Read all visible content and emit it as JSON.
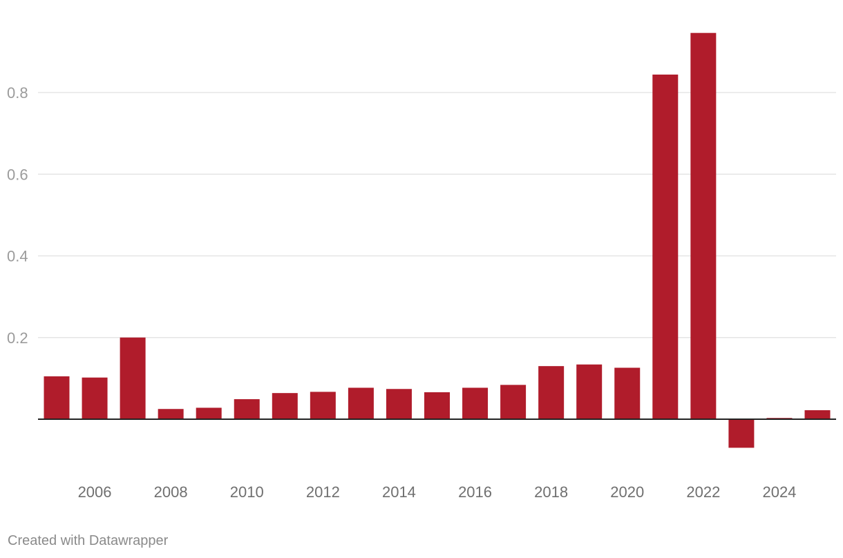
{
  "chart_data": {
    "type": "bar",
    "title": "",
    "xlabel": "",
    "ylabel": "",
    "categories": [
      "2005",
      "2006",
      "2007",
      "2008",
      "2009",
      "2010",
      "2011",
      "2012",
      "2013",
      "2014",
      "2015",
      "2016",
      "2017",
      "2018",
      "2019",
      "2020",
      "2021",
      "2022",
      "2023",
      "2024",
      "2025"
    ],
    "values": [
      0.105,
      0.102,
      0.2,
      0.025,
      0.028,
      0.049,
      0.064,
      0.067,
      0.077,
      0.074,
      0.066,
      0.077,
      0.084,
      0.13,
      0.134,
      0.126,
      0.844,
      0.946,
      -0.07,
      0.003,
      0.022
    ],
    "ylim": [
      -0.1,
      0.95
    ],
    "y_ticks": [
      0.2,
      0.4,
      0.6,
      0.8
    ],
    "y_tick_labels": [
      "0.2",
      "0.4",
      "0.6",
      "0.8"
    ],
    "x_tick_labels": [
      "2006",
      "2008",
      "2010",
      "2012",
      "2014",
      "2016",
      "2018",
      "2020",
      "2022",
      "2024"
    ],
    "bar_color": "#b01c2b",
    "grid": true
  },
  "footer": {
    "credit": "Created with Datawrapper"
  }
}
